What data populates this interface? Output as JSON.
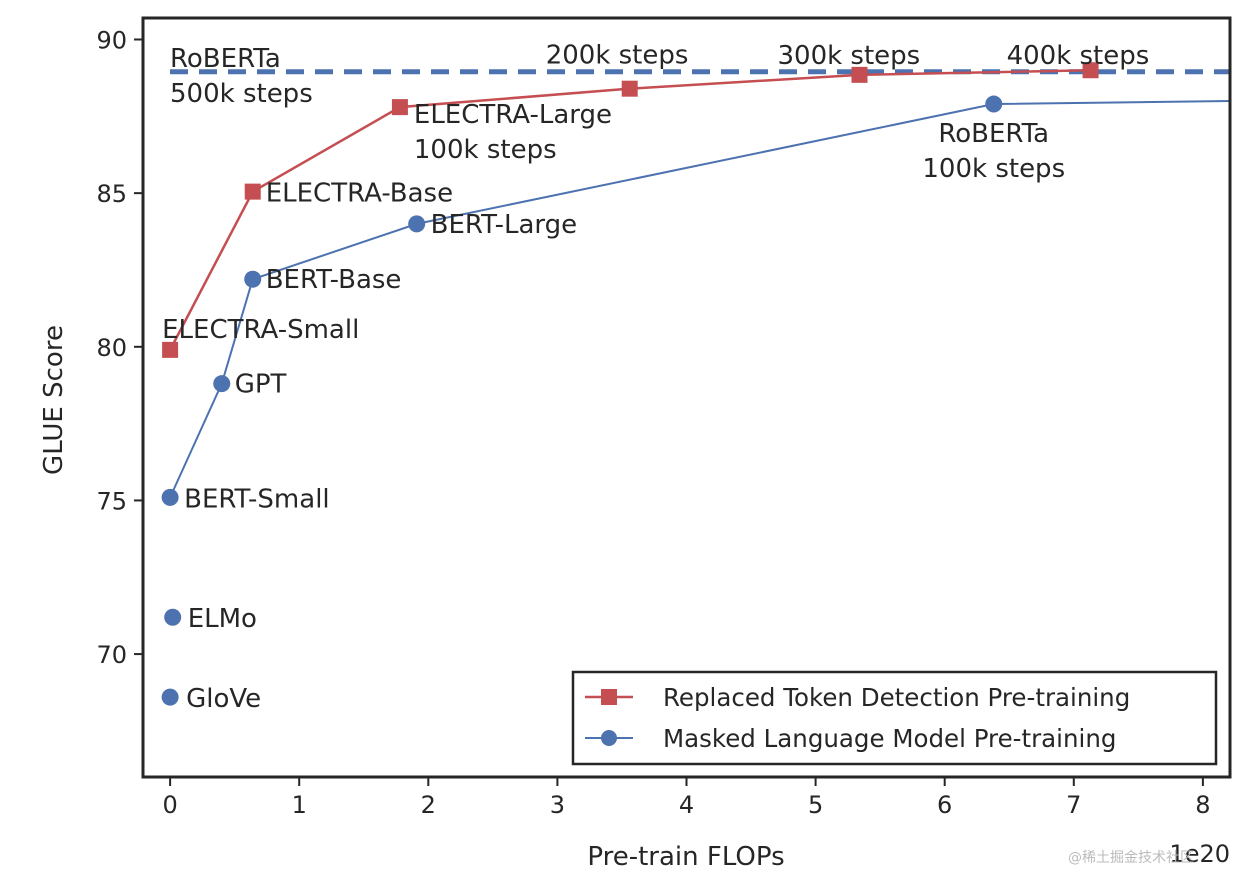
{
  "chart_data": {
    "type": "line",
    "title": "",
    "xlabel": "Pre-train FLOPs",
    "ylabel": "GLUE Score",
    "x_offset_text": "1e20",
    "xlim": [
      -0.21,
      8.21
    ],
    "ylim": [
      66.0,
      90.7
    ],
    "xticks": [
      0,
      1,
      2,
      3,
      4,
      5,
      6,
      7,
      8
    ],
    "yticks": [
      70,
      75,
      80,
      85,
      90
    ],
    "grid": false,
    "legend_position": "bottom-right",
    "series": [
      {
        "name": "Replaced Token Detection Pre-training",
        "color": "#c44e52",
        "marker": "square",
        "x": [
          0.0,
          0.64,
          1.78,
          3.56,
          5.34,
          7.13
        ],
        "y": [
          79.9,
          85.05,
          87.8,
          88.4,
          88.85,
          89.0
        ],
        "labels": [
          [
            "ELECTRA-Small"
          ],
          [
            "ELECTRA-Base"
          ],
          [
            "ELECTRA-Large",
            "100k steps"
          ],
          [
            "200k steps"
          ],
          [
            "300k steps"
          ],
          [
            "400k steps"
          ]
        ]
      },
      {
        "name": "Masked Language Model Pre-training",
        "color": "#4c72b0",
        "marker": "circle",
        "x": [
          0.0,
          0.02,
          0.0,
          0.4,
          0.64,
          1.91,
          6.38
        ],
        "y": [
          68.6,
          71.2,
          75.1,
          78.8,
          82.2,
          84.0,
          87.9
        ],
        "labels": [
          [
            "GloVe"
          ],
          [
            "ELMo"
          ],
          [
            "BERT-Small"
          ],
          [
            "GPT"
          ],
          [
            "BERT-Base"
          ],
          [
            "BERT-Large"
          ],
          [
            "RoBERTa",
            "100k steps"
          ]
        ],
        "line_x": [
          0.0,
          0.4,
          0.64,
          1.91,
          6.38,
          8.21
        ],
        "line_y": [
          75.1,
          78.8,
          82.2,
          84.0,
          87.9,
          88.0
        ]
      }
    ],
    "reference_line": {
      "y": 88.95,
      "color": "#4c72b0",
      "style": "dashed",
      "label": [
        "RoBERTa",
        "500k steps"
      ]
    }
  },
  "watermark": "@稀土掘金技术社区"
}
